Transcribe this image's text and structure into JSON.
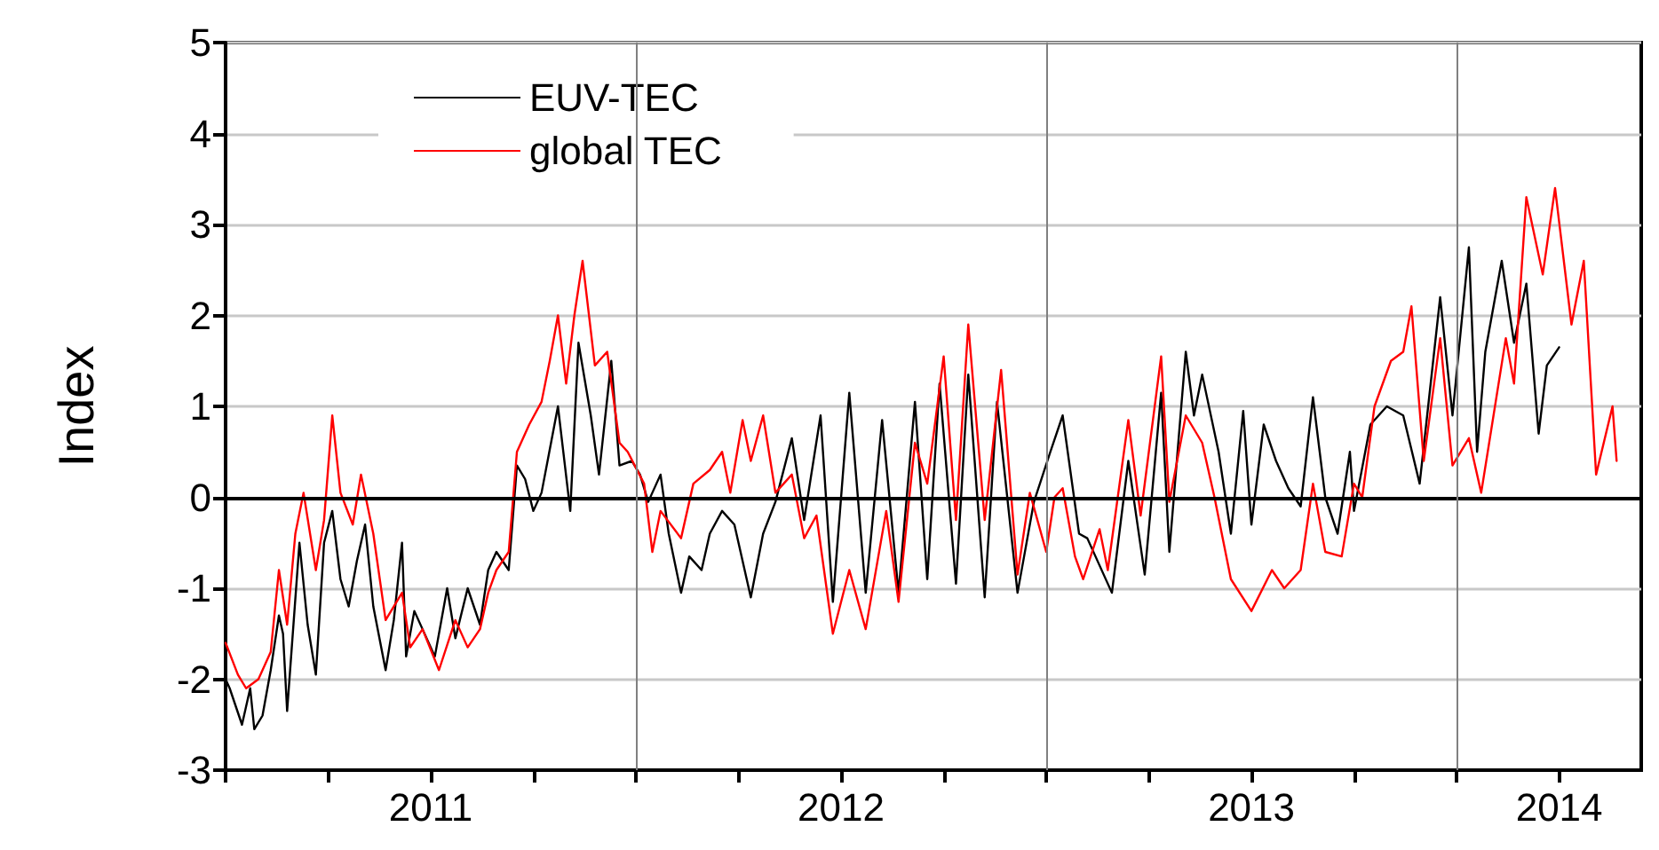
{
  "chart_data": {
    "type": "line",
    "ylabel": "Index",
    "xlim": [
      2011,
      2014.45
    ],
    "ylim": [
      -3,
      5
    ],
    "yticks": [
      -3,
      -2,
      -1,
      0,
      1,
      2,
      3,
      4,
      5
    ],
    "xticks": [
      {
        "value": 2011,
        "label": null
      },
      {
        "value": 2011.25,
        "label": null
      },
      {
        "value": 2011.5,
        "label": "2011"
      },
      {
        "value": 2011.75,
        "label": null
      },
      {
        "value": 2012,
        "label": null
      },
      {
        "value": 2012.25,
        "label": null
      },
      {
        "value": 2012.5,
        "label": "2012"
      },
      {
        "value": 2012.75,
        "label": null
      },
      {
        "value": 2013,
        "label": null
      },
      {
        "value": 2013.25,
        "label": null
      },
      {
        "value": 2013.5,
        "label": "2013"
      },
      {
        "value": 2013.75,
        "label": null
      },
      {
        "value": 2014,
        "label": null
      },
      {
        "value": 2014.25,
        "label": "2014"
      }
    ],
    "grid": "y",
    "legend": "top left",
    "marker": "none",
    "line_style": "solid",
    "ref_lines": [
      {
        "axis": "y",
        "value": 0,
        "label": null,
        "color": "#000000"
      },
      {
        "axis": "x",
        "value": 2012,
        "label": null,
        "color": "#808080"
      },
      {
        "axis": "x",
        "value": 2013,
        "label": null,
        "color": "#808080"
      },
      {
        "axis": "x",
        "value": 2014,
        "label": null,
        "color": "#808080"
      }
    ],
    "series": [
      {
        "name": "EUV-TEC",
        "color": "#000000",
        "x": [
          2011.0,
          2011.01,
          2011.04,
          2011.06,
          2011.07,
          2011.09,
          2011.11,
          2011.13,
          2011.14,
          2011.15,
          2011.18,
          2011.2,
          2011.22,
          2011.24,
          2011.26,
          2011.28,
          2011.3,
          2011.32,
          2011.34,
          2011.36,
          2011.39,
          2011.41,
          2011.43,
          2011.44,
          2011.46,
          2011.49,
          2011.51,
          2011.54,
          2011.56,
          2011.59,
          2011.62,
          2011.64,
          2011.66,
          2011.69,
          2011.71,
          2011.73,
          2011.75,
          2011.77,
          2011.81,
          2011.84,
          2011.86,
          2011.89,
          2011.91,
          2011.94,
          2011.96,
          2011.99,
          2012.01,
          2012.03,
          2012.06,
          2012.08,
          2012.11,
          2012.13,
          2012.16,
          2012.18,
          2012.21,
          2012.24,
          2012.28,
          2012.31,
          2012.34,
          2012.38,
          2012.41,
          2012.45,
          2012.48,
          2012.52,
          2012.56,
          2012.6,
          2012.64,
          2012.68,
          2012.71,
          2012.74,
          2012.78,
          2012.81,
          2012.85,
          2012.88,
          2012.93,
          2012.97,
          2013.01,
          2013.04,
          2013.08,
          2013.1,
          2013.16,
          2013.2,
          2013.24,
          2013.28,
          2013.3,
          2013.34,
          2013.36,
          2013.38,
          2013.42,
          2013.45,
          2013.48,
          2013.5,
          2013.53,
          2013.56,
          2013.59,
          2013.62,
          2013.65,
          2013.68,
          2013.71,
          2013.74,
          2013.75,
          2013.79,
          2013.83,
          2013.87,
          2013.91,
          2013.96,
          2013.99,
          2014.03,
          2014.05,
          2014.07,
          2014.11,
          2014.14,
          2014.17,
          2014.2,
          2014.22,
          2014.25
        ],
        "values": [
          -2.0,
          -2.1,
          -2.5,
          -2.1,
          -2.55,
          -2.4,
          -1.9,
          -1.3,
          -1.5,
          -2.35,
          -0.5,
          -1.4,
          -1.95,
          -0.5,
          -0.15,
          -0.9,
          -1.2,
          -0.7,
          -0.3,
          -1.2,
          -1.9,
          -1.35,
          -0.5,
          -1.75,
          -1.25,
          -1.55,
          -1.75,
          -1.0,
          -1.55,
          -1.0,
          -1.4,
          -0.8,
          -0.6,
          -0.8,
          0.35,
          0.2,
          -0.15,
          0.05,
          1.0,
          -0.15,
          1.7,
          0.9,
          0.25,
          1.5,
          0.35,
          0.4,
          0.25,
          -0.05,
          0.25,
          -0.4,
          -1.05,
          -0.65,
          -0.8,
          -0.4,
          -0.15,
          -0.3,
          -1.1,
          -0.4,
          -0.05,
          0.65,
          -0.25,
          0.9,
          -1.15,
          1.15,
          -1.05,
          0.85,
          -1.05,
          1.05,
          -0.9,
          1.25,
          -0.95,
          1.35,
          -1.1,
          1.05,
          -1.05,
          -0.05,
          0.5,
          0.9,
          -0.4,
          -0.45,
          -1.05,
          0.4,
          -0.85,
          1.15,
          -0.6,
          1.6,
          0.9,
          1.35,
          0.5,
          -0.4,
          0.95,
          -0.3,
          0.8,
          0.4,
          0.1,
          -0.1,
          1.1,
          0,
          -0.4,
          0.5,
          -0.15,
          0.8,
          1.0,
          0.9,
          0.15,
          2.2,
          0.9,
          2.75,
          0.5,
          1.6,
          2.6,
          1.7,
          2.35,
          0.7,
          1.45,
          1.65
        ]
      },
      {
        "name": "global TEC",
        "color": "#ff0000",
        "x": [
          2011.0,
          2011.03,
          2011.05,
          2011.08,
          2011.11,
          2011.13,
          2011.15,
          2011.17,
          2011.19,
          2011.22,
          2011.24,
          2011.26,
          2011.28,
          2011.31,
          2011.33,
          2011.36,
          2011.39,
          2011.43,
          2011.45,
          2011.48,
          2011.52,
          2011.56,
          2011.59,
          2011.62,
          2011.64,
          2011.66,
          2011.69,
          2011.71,
          2011.74,
          2011.77,
          2011.79,
          2011.81,
          2011.83,
          2011.85,
          2011.87,
          2011.9,
          2011.93,
          2011.96,
          2011.98,
          2012.02,
          2012.04,
          2012.06,
          2012.11,
          2012.14,
          2012.18,
          2012.21,
          2012.23,
          2012.26,
          2012.28,
          2012.31,
          2012.34,
          2012.38,
          2012.41,
          2012.44,
          2012.48,
          2012.52,
          2012.56,
          2012.61,
          2012.64,
          2012.68,
          2012.71,
          2012.75,
          2012.78,
          2012.81,
          2012.85,
          2012.89,
          2012.93,
          2012.96,
          2013.0,
          2013.02,
          2013.04,
          2013.07,
          2013.09,
          2013.13,
          2013.15,
          2013.2,
          2013.23,
          2013.28,
          2013.3,
          2013.34,
          2013.38,
          2013.41,
          2013.45,
          2013.5,
          2013.55,
          2013.58,
          2013.62,
          2013.65,
          2013.68,
          2013.72,
          2013.75,
          2013.77,
          2013.8,
          2013.84,
          2013.87,
          2013.89,
          2013.92,
          2013.96,
          2013.99,
          2014.03,
          2014.06,
          2014.09,
          2014.12,
          2014.14,
          2014.17,
          2014.21,
          2014.24,
          2014.28,
          2014.31,
          2014.34,
          2014.38,
          2014.39
        ],
        "values": [
          -1.6,
          -1.95,
          -2.1,
          -2.0,
          -1.7,
          -0.8,
          -1.4,
          -0.4,
          0.05,
          -0.8,
          -0.25,
          0.9,
          0.05,
          -0.3,
          0.25,
          -0.4,
          -1.35,
          -1.05,
          -1.65,
          -1.45,
          -1.9,
          -1.35,
          -1.65,
          -1.45,
          -1.05,
          -0.8,
          -0.6,
          0.5,
          0.8,
          1.05,
          1.5,
          2.0,
          1.25,
          2.0,
          2.6,
          1.45,
          1.6,
          0.6,
          0.5,
          0.15,
          -0.6,
          -0.15,
          -0.45,
          0.15,
          0.3,
          0.5,
          0.05,
          0.85,
          0.4,
          0.9,
          0.05,
          0.25,
          -0.45,
          -0.2,
          -1.5,
          -0.8,
          -1.45,
          -0.15,
          -1.15,
          0.6,
          0.15,
          1.55,
          -0.25,
          1.9,
          -0.25,
          1.4,
          -0.85,
          0.05,
          -0.6,
          0,
          0.1,
          -0.65,
          -0.9,
          -0.35,
          -0.8,
          0.85,
          -0.2,
          1.55,
          -0.05,
          0.9,
          0.6,
          0,
          -0.9,
          -1.25,
          -0.8,
          -1.0,
          -0.8,
          0.15,
          -0.6,
          -0.65,
          0.15,
          0,
          1.0,
          1.5,
          1.6,
          2.1,
          0.4,
          1.75,
          0.35,
          0.65,
          0.05,
          0.9,
          1.75,
          1.25,
          3.3,
          2.45,
          3.4,
          1.9,
          2.6,
          0.25,
          1.0,
          0.4
        ]
      }
    ]
  }
}
